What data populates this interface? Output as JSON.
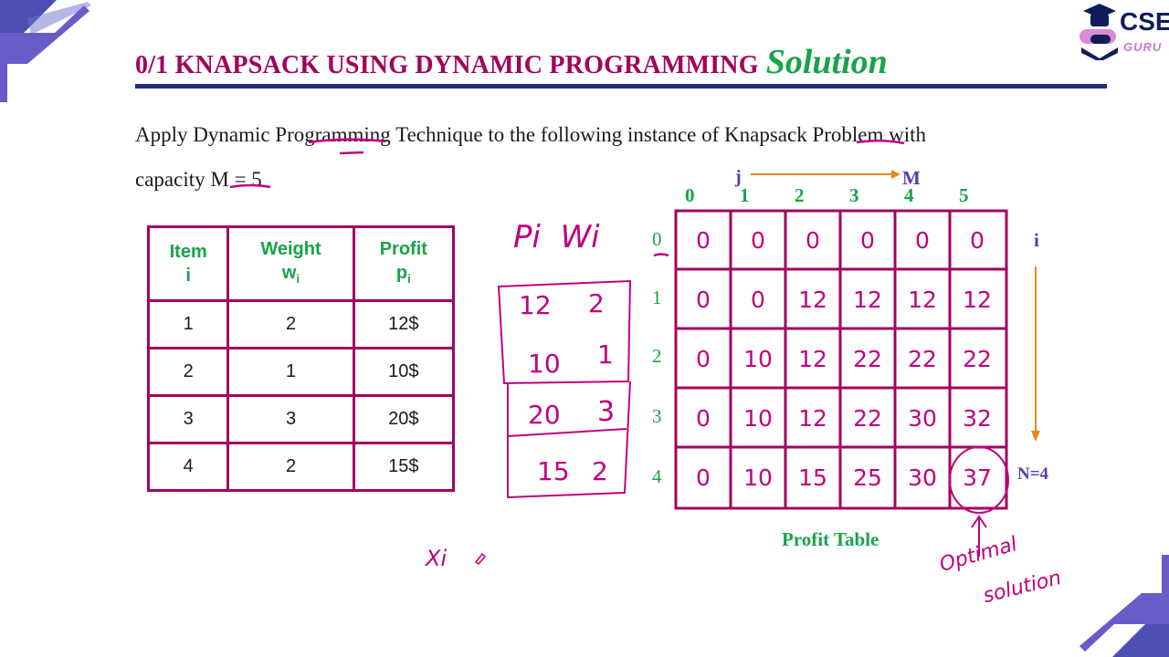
{
  "header": {
    "title_main": "0/1 KNAPSACK USING DYNAMIC PROGRAMMING",
    "title_sub": "Solution"
  },
  "logo": {
    "brand": "CSE",
    "sub": "GURU",
    "icon": "graduation-cap-icon"
  },
  "problem": {
    "line1": "Apply Dynamic Programming Technique to the following instance of Knapsack Problem with",
    "line2": "capacity M = 5"
  },
  "items_table": {
    "headers": [
      {
        "label": "Item",
        "symbol": "i",
        "sub": ""
      },
      {
        "label": "Weight",
        "symbol": "w",
        "sub": "i"
      },
      {
        "label": "Profit",
        "symbol": "p",
        "sub": "i"
      }
    ],
    "rows": [
      [
        "1",
        "2",
        "12$"
      ],
      [
        "2",
        "1",
        "10$"
      ],
      [
        "3",
        "3",
        "20$"
      ],
      [
        "4",
        "2",
        "15$"
      ]
    ]
  },
  "notes": {
    "pi_wi_heading": "Pi  Wi",
    "pairs": [
      [
        "12",
        "2"
      ],
      [
        "10",
        "1"
      ],
      [
        "20",
        "3"
      ],
      [
        "15",
        "2"
      ]
    ],
    "xi": "Xi"
  },
  "profit_table": {
    "j_label": "j",
    "m_label": "M",
    "i_label": "i",
    "n_label": "N=4",
    "caption": "Profit Table",
    "col_headers": [
      "0",
      "1",
      "2",
      "3",
      "4",
      "5"
    ],
    "row_headers": [
      "0",
      "1",
      "2",
      "3",
      "4"
    ],
    "cells": [
      [
        "0",
        "0",
        "0",
        "0",
        "0",
        "0"
      ],
      [
        "0",
        "0",
        "12",
        "12",
        "12",
        "12"
      ],
      [
        "0",
        "10",
        "12",
        "22",
        "22",
        "22"
      ],
      [
        "0",
        "10",
        "12",
        "22",
        "30",
        "32"
      ],
      [
        "0",
        "10",
        "15",
        "25",
        "30",
        "37"
      ]
    ],
    "optimal_note": [
      "Optimal",
      "solution"
    ]
  },
  "colors": {
    "magenta": "#a3005e",
    "green": "#17a34a",
    "navy": "#1f2f7a",
    "purple": "#5a3ba8",
    "orange": "#e08a1e",
    "ink": "#c0007e"
  }
}
